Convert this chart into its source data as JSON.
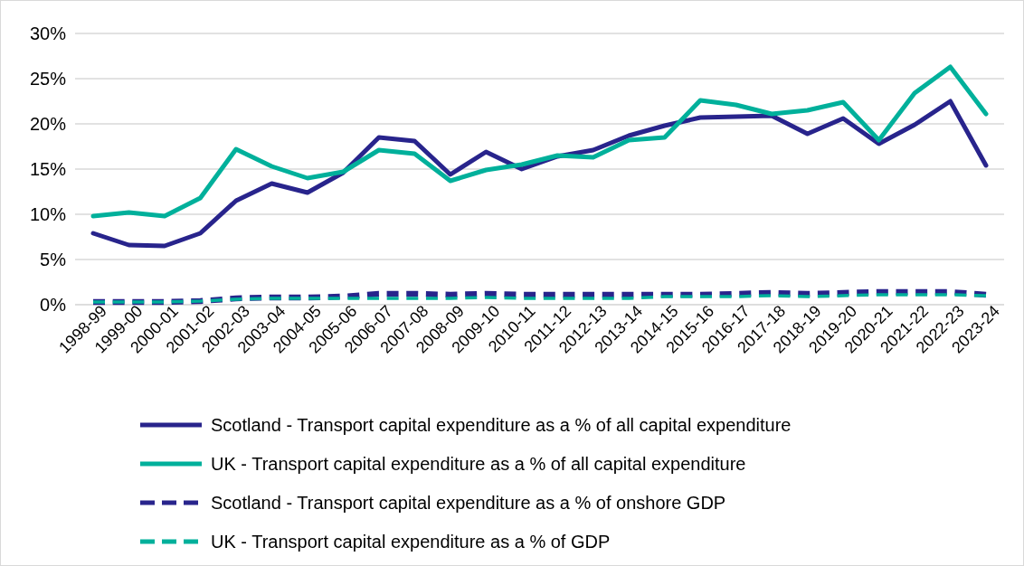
{
  "chart_data": {
    "type": "line",
    "categories": [
      "1998-99",
      "1999-00",
      "2000-01",
      "2001-02",
      "2002-03",
      "2003-04",
      "2004-05",
      "2005-06",
      "2006-07",
      "2007-08",
      "2008-09",
      "2009-10",
      "2010-11",
      "2011-12",
      "2012-13",
      "2013-14",
      "2014-15",
      "2015-16",
      "2016-17",
      "2017-18",
      "2018-19",
      "2019-20",
      "2020-21",
      "2021-22",
      "2022-23",
      "2023-24"
    ],
    "series": [
      {
        "name": "Scotland - Transport capital expenditure as a % of all capital expenditure",
        "color": "#28248c",
        "line_style": "solid",
        "values": [
          7.9,
          6.6,
          6.5,
          7.9,
          11.5,
          13.4,
          12.4,
          14.6,
          18.5,
          18.1,
          14.4,
          16.9,
          15.0,
          16.4,
          17.1,
          18.7,
          19.8,
          20.7,
          20.8,
          20.9,
          18.9,
          20.6,
          17.8,
          19.9,
          22.5,
          15.4
        ]
      },
      {
        "name": "UK - Transport capital expenditure as a % of all capital expenditure",
        "color": "#00b09b",
        "line_style": "solid",
        "values": [
          9.8,
          10.2,
          9.8,
          11.8,
          17.2,
          15.3,
          14.0,
          14.7,
          17.1,
          16.7,
          13.7,
          14.9,
          15.5,
          16.5,
          16.3,
          18.2,
          18.5,
          22.6,
          22.1,
          21.1,
          21.5,
          22.4,
          18.2,
          23.4,
          26.3,
          21.1
        ]
      },
      {
        "name": "Scotland - Transport capital expenditure as a % of onshore GDP",
        "color": "#28248c",
        "line_style": "dashed",
        "values": [
          0.3,
          0.3,
          0.3,
          0.4,
          0.7,
          0.8,
          0.8,
          0.9,
          1.2,
          1.2,
          1.1,
          1.2,
          1.1,
          1.1,
          1.1,
          1.1,
          1.1,
          1.1,
          1.2,
          1.3,
          1.2,
          1.3,
          1.4,
          1.4,
          1.4,
          1.1
        ]
      },
      {
        "name": "UK - Transport capital expenditure as a % of GDP",
        "color": "#00b09b",
        "line_style": "dashed",
        "values": [
          0.3,
          0.3,
          0.3,
          0.4,
          0.6,
          0.7,
          0.7,
          0.7,
          0.7,
          0.7,
          0.7,
          0.8,
          0.7,
          0.7,
          0.7,
          0.7,
          0.9,
          0.9,
          0.9,
          1.0,
          0.9,
          1.0,
          1.1,
          1.1,
          1.1,
          1.0
        ]
      }
    ],
    "ylim": [
      0,
      30
    ],
    "yticks": [
      {
        "value": 0,
        "label": "0%"
      },
      {
        "value": 5,
        "label": "5%"
      },
      {
        "value": 10,
        "label": "10%"
      },
      {
        "value": 15,
        "label": "15%"
      },
      {
        "value": 20,
        "label": "20%"
      },
      {
        "value": 25,
        "label": "25%"
      },
      {
        "value": 30,
        "label": "30%"
      }
    ],
    "grid": "y",
    "legend": "bottom",
    "marker": "none"
  }
}
